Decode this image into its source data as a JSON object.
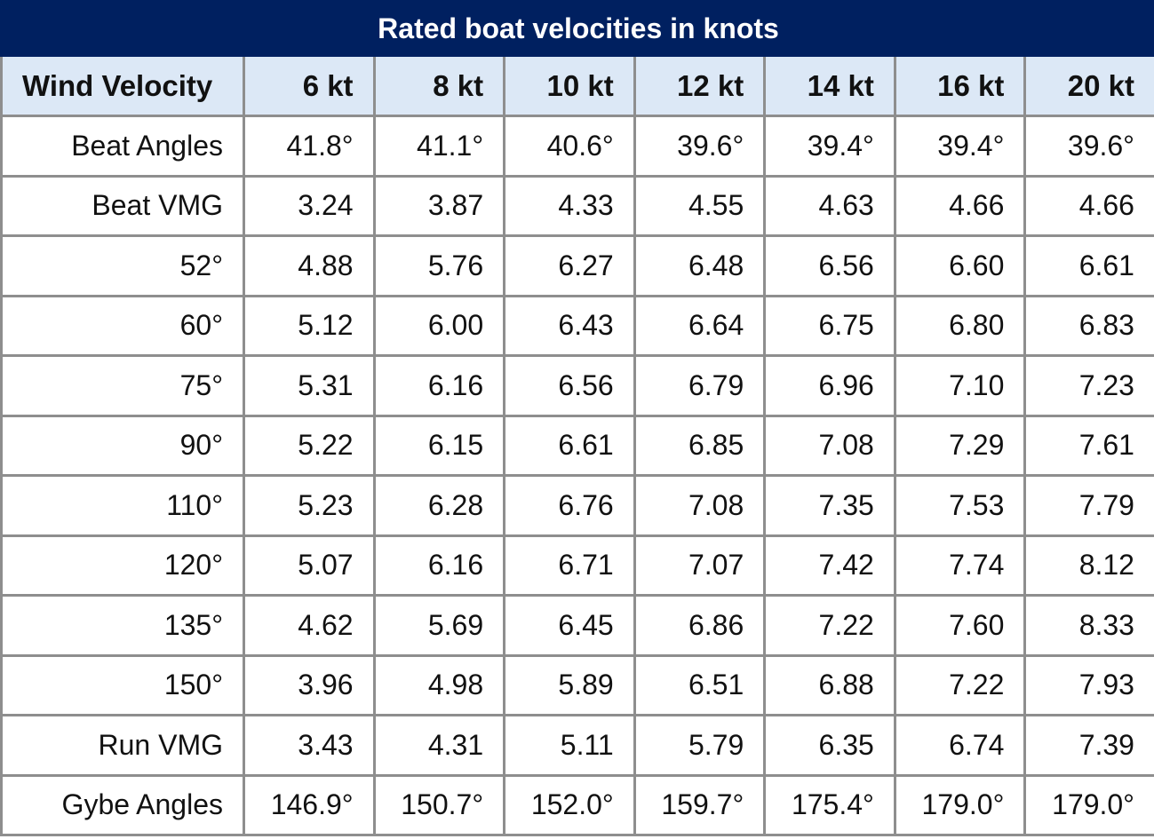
{
  "chart_data": {
    "type": "table",
    "title": "Rated boat velocities in knots",
    "columns": [
      "Wind Velocity",
      "6 kt",
      "8 kt",
      "10 kt",
      "12 kt",
      "14 kt",
      "16 kt",
      "20 kt"
    ],
    "rows": [
      {
        "label": "Beat Angles",
        "values": [
          "41.8°",
          "41.1°",
          "40.6°",
          "39.6°",
          "39.4°",
          "39.4°",
          "39.6°"
        ]
      },
      {
        "label": "Beat VMG",
        "values": [
          "3.24",
          "3.87",
          "4.33",
          "4.55",
          "4.63",
          "4.66",
          "4.66"
        ]
      },
      {
        "label": "52°",
        "values": [
          "4.88",
          "5.76",
          "6.27",
          "6.48",
          "6.56",
          "6.60",
          "6.61"
        ]
      },
      {
        "label": "60°",
        "values": [
          "5.12",
          "6.00",
          "6.43",
          "6.64",
          "6.75",
          "6.80",
          "6.83"
        ]
      },
      {
        "label": "75°",
        "values": [
          "5.31",
          "6.16",
          "6.56",
          "6.79",
          "6.96",
          "7.10",
          "7.23"
        ]
      },
      {
        "label": "90°",
        "values": [
          "5.22",
          "6.15",
          "6.61",
          "6.85",
          "7.08",
          "7.29",
          "7.61"
        ]
      },
      {
        "label": "110°",
        "values": [
          "5.23",
          "6.28",
          "6.76",
          "7.08",
          "7.35",
          "7.53",
          "7.79"
        ]
      },
      {
        "label": "120°",
        "values": [
          "5.07",
          "6.16",
          "6.71",
          "7.07",
          "7.42",
          "7.74",
          "8.12"
        ]
      },
      {
        "label": "135°",
        "values": [
          "4.62",
          "5.69",
          "6.45",
          "6.86",
          "7.22",
          "7.60",
          "8.33"
        ]
      },
      {
        "label": "150°",
        "values": [
          "3.96",
          "4.98",
          "5.89",
          "6.51",
          "6.88",
          "7.22",
          "7.93"
        ]
      },
      {
        "label": "Run VMG",
        "values": [
          "3.43",
          "4.31",
          "5.11",
          "5.79",
          "6.35",
          "6.74",
          "7.39"
        ]
      },
      {
        "label": "Gybe Angles",
        "values": [
          "146.9°",
          "150.7°",
          "152.0°",
          "159.7°",
          "175.4°",
          "179.0°",
          "179.0°"
        ]
      }
    ]
  },
  "colors": {
    "title_bg": "#002060",
    "header_bg": "#dce8f6",
    "grid": "#8e8e8e"
  }
}
